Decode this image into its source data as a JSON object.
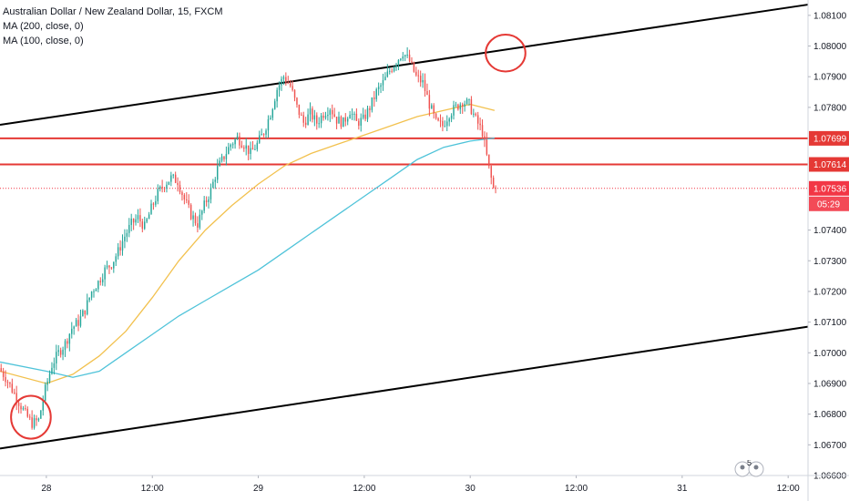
{
  "chart_data": {
    "type": "candlestick",
    "title": "Australian Dollar / New Zealand Dollar, 15, FXCM",
    "indicators": [
      {
        "name": "MA (200, close, 0)",
        "color": "#f2c14e"
      },
      {
        "name": "MA (100, close, 0)",
        "color": "#4fc3d9"
      }
    ],
    "y_ticks": [
      1.081,
      1.08,
      1.079,
      1.078,
      1.077,
      1.076,
      1.075,
      1.074,
      1.073,
      1.072,
      1.071,
      1.07,
      1.069,
      1.068,
      1.067,
      1.066
    ],
    "y_tick_labels": [
      "1.08100",
      "1.08000",
      "1.07900",
      "1.07800",
      "1.07699",
      "1.07614",
      "1.07536",
      "1.07400",
      "1.07300",
      "1.07200",
      "1.07100",
      "1.07000",
      "1.06900",
      "1.06800",
      "1.06700",
      "1.06600"
    ],
    "ylim": [
      1.066,
      1.0815
    ],
    "x_ticks": [
      {
        "label": "28",
        "t": 0
      },
      {
        "label": "12:00",
        "t": 48
      },
      {
        "label": "29",
        "t": 96
      },
      {
        "label": "12:00",
        "t": 144
      },
      {
        "label": "30",
        "t": 192
      },
      {
        "label": "12:00",
        "t": 240
      },
      {
        "label": "31",
        "t": 288
      },
      {
        "label": "12:00",
        "t": 336
      }
    ],
    "xlim": [
      -21,
      345
    ],
    "horizontal_levels": [
      {
        "value": 1.07699,
        "label": "1.07699",
        "color": "#e53935"
      },
      {
        "value": 1.07614,
        "label": "1.07614",
        "color": "#e53935"
      }
    ],
    "last_price": {
      "value": 1.07536,
      "label": "1.07536",
      "countdown": "05:29",
      "color": "#f23645"
    },
    "channel_lines": [
      {
        "name": "upper",
        "t_start": -21,
        "v_start": 1.07743,
        "t_end": 345,
        "v_end": 1.08135
      },
      {
        "name": "lower",
        "t_start": -21,
        "v_start": 1.06688,
        "t_end": 345,
        "v_end": 1.07085
      }
    ],
    "highlight_ellipses": [
      {
        "name": "low-circle",
        "t_center": -7,
        "v_center": 1.0679,
        "t_radius": 9,
        "v_radius": 0.0007
      },
      {
        "name": "high-circle",
        "t_center": 208,
        "v_center": 1.07977,
        "t_radius": 9,
        "v_radius": 0.0006
      }
    ],
    "price_path": [
      [
        -21,
        1.0695
      ],
      [
        -18,
        1.0692
      ],
      [
        -15,
        1.0688
      ],
      [
        -12,
        1.0684
      ],
      [
        -9,
        1.068
      ],
      [
        -6,
        1.0677
      ],
      [
        -3,
        1.0678
      ],
      [
        0,
        1.0688
      ],
      [
        3,
        1.0696
      ],
      [
        6,
        1.07
      ],
      [
        9,
        1.0703
      ],
      [
        12,
        1.0708
      ],
      [
        15,
        1.071
      ],
      [
        18,
        1.0714
      ],
      [
        21,
        1.072
      ],
      [
        24,
        1.0723
      ],
      [
        27,
        1.0727
      ],
      [
        30,
        1.0729
      ],
      [
        33,
        1.0733
      ],
      [
        36,
        1.0738
      ],
      [
        39,
        1.0742
      ],
      [
        42,
        1.0744
      ],
      [
        45,
        1.0741
      ],
      [
        48,
        1.0747
      ],
      [
        51,
        1.0752
      ],
      [
        54,
        1.0755
      ],
      [
        57,
        1.0757
      ],
      [
        60,
        1.0756
      ],
      [
        63,
        1.075
      ],
      [
        66,
        1.0745
      ],
      [
        69,
        1.0742
      ],
      [
        72,
        1.0748
      ],
      [
        75,
        1.0753
      ],
      [
        78,
        1.076
      ],
      [
        81,
        1.0764
      ],
      [
        84,
        1.0768
      ],
      [
        87,
        1.077
      ],
      [
        90,
        1.0768
      ],
      [
        93,
        1.0765
      ],
      [
        96,
        1.0768
      ],
      [
        99,
        1.0772
      ],
      [
        102,
        1.0778
      ],
      [
        105,
        1.0786
      ],
      [
        108,
        1.079
      ],
      [
        111,
        1.0787
      ],
      [
        114,
        1.078
      ],
      [
        117,
        1.0775
      ],
      [
        120,
        1.0778
      ],
      [
        123,
        1.0775
      ],
      [
        126,
        1.0778
      ],
      [
        129,
        1.078
      ],
      [
        132,
        1.0776
      ],
      [
        135,
        1.0775
      ],
      [
        138,
        1.0779
      ],
      [
        141,
        1.0775
      ],
      [
        144,
        1.0776
      ],
      [
        147,
        1.078
      ],
      [
        150,
        1.0785
      ],
      [
        153,
        1.0788
      ],
      [
        156,
        1.0792
      ],
      [
        159,
        1.0795
      ],
      [
        162,
        1.0798
      ],
      [
        165,
        1.0795
      ],
      [
        168,
        1.079
      ],
      [
        171,
        1.0788
      ],
      [
        174,
        1.0781
      ],
      [
        177,
        1.0775
      ],
      [
        180,
        1.0774
      ],
      [
        183,
        1.0778
      ],
      [
        186,
        1.078
      ],
      [
        189,
        1.0782
      ],
      [
        192,
        1.0781
      ],
      [
        195,
        1.0776
      ],
      [
        198,
        1.0772
      ],
      [
        201,
        1.076
      ],
      [
        203,
        1.07536
      ]
    ],
    "ma200_path": [
      [
        -21,
        1.0694
      ],
      [
        0,
        1.069
      ],
      [
        12,
        1.0693
      ],
      [
        24,
        1.0699
      ],
      [
        36,
        1.0707
      ],
      [
        48,
        1.0718
      ],
      [
        60,
        1.073
      ],
      [
        72,
        1.074
      ],
      [
        84,
        1.0748
      ],
      [
        96,
        1.0755
      ],
      [
        108,
        1.0761
      ],
      [
        120,
        1.0765
      ],
      [
        132,
        1.0768
      ],
      [
        144,
        1.0771
      ],
      [
        156,
        1.0774
      ],
      [
        168,
        1.0777
      ],
      [
        180,
        1.0779
      ],
      [
        192,
        1.0781
      ],
      [
        203,
        1.0779
      ]
    ],
    "ma100_path": [
      [
        -21,
        1.0697
      ],
      [
        0,
        1.0694
      ],
      [
        12,
        1.0692
      ],
      [
        24,
        1.0694
      ],
      [
        36,
        1.07
      ],
      [
        48,
        1.0706
      ],
      [
        60,
        1.0712
      ],
      [
        72,
        1.0717
      ],
      [
        84,
        1.0722
      ],
      [
        96,
        1.0727
      ],
      [
        108,
        1.0733
      ],
      [
        120,
        1.0739
      ],
      [
        132,
        1.0745
      ],
      [
        144,
        1.0751
      ],
      [
        156,
        1.0757
      ],
      [
        168,
        1.0763
      ],
      [
        180,
        1.0767
      ],
      [
        192,
        1.0769
      ],
      [
        203,
        1.077
      ]
    ]
  },
  "overlay": {
    "badge_count": "5"
  }
}
